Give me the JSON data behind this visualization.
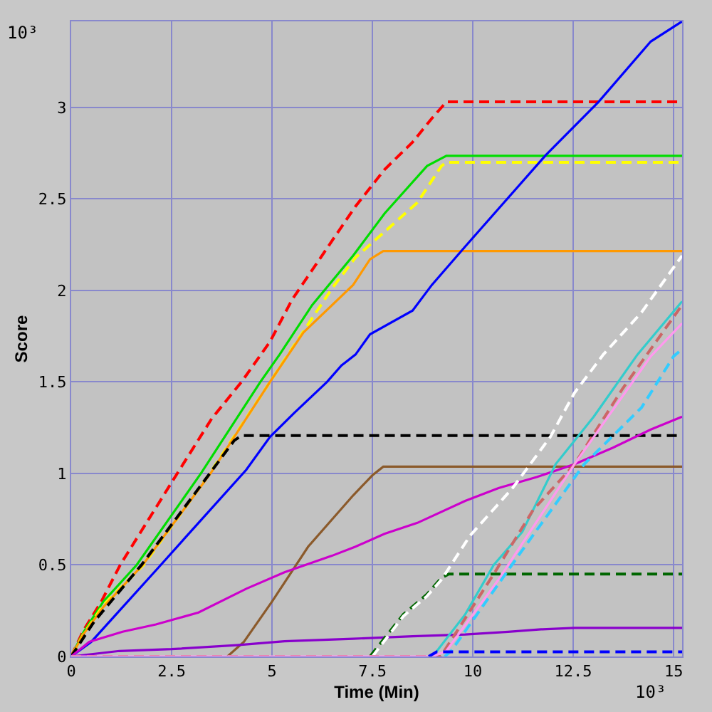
{
  "chart_data": {
    "type": "line",
    "xlabel": "Time (Min)",
    "ylabel": "Score",
    "annotations": [
      "10³",
      "10³"
    ],
    "xlim": [
      0,
      15.21
    ],
    "ylim": [
      0,
      3.47
    ],
    "xticks": [
      0,
      2.5,
      5,
      7.5,
      10,
      12.5,
      15
    ],
    "yticks": [
      0,
      0.5,
      1,
      1.5,
      2,
      2.5,
      3
    ],
    "grid": true,
    "series": [
      {
        "color": "#ff0000",
        "line_style": "dashed",
        "x": [
          0,
          0.3,
          0.75,
          1.22,
          2.64,
          3.5,
          4.24,
          4.95,
          5.5,
          7.08,
          7.8,
          8.5,
          8.98,
          9.34,
          15.21
        ],
        "values": [
          0,
          0.14,
          0.3,
          0.5,
          1.0,
          1.3,
          1.5,
          1.72,
          1.95,
          2.46,
          2.66,
          2.81,
          2.94,
          3.03,
          3.03
        ]
      },
      {
        "color": "#00dd00",
        "line_style": "solid",
        "x": [
          0,
          0.3,
          0.8,
          1.63,
          3.23,
          4.71,
          5.19,
          6.0,
          7.02,
          7.8,
          8.86,
          9.34,
          15.21
        ],
        "values": [
          0,
          0.13,
          0.3,
          0.5,
          1.0,
          1.5,
          1.65,
          1.92,
          2.19,
          2.42,
          2.68,
          2.735,
          2.735
        ]
      },
      {
        "color": "#ffff00",
        "line_style": "dashed",
        "x": [
          0,
          0.3,
          0.8,
          1.8,
          3.45,
          4.95,
          5.55,
          6.49,
          7.08,
          7.8,
          8.62,
          9.22,
          9.34,
          15.21
        ],
        "values": [
          0,
          0.12,
          0.28,
          0.5,
          1.0,
          1.5,
          1.7,
          2.01,
          2.18,
          2.32,
          2.48,
          2.68,
          2.7,
          2.7
        ]
      },
      {
        "color": "#ff9900",
        "line_style": "solid",
        "x": [
          0,
          0.3,
          0.8,
          1.78,
          3.47,
          4.95,
          5.78,
          7.02,
          7.44,
          7.77,
          15.21
        ],
        "values": [
          0,
          0.12,
          0.27,
          0.5,
          1.0,
          1.5,
          1.77,
          2.03,
          2.17,
          2.215,
          2.215
        ]
      },
      {
        "color": "#0000ff",
        "line_style": "solid",
        "x": [
          0,
          0.5,
          2.23,
          3.17,
          4.36,
          4.95,
          5.55,
          6.37,
          6.73,
          7.08,
          7.44,
          8.5,
          8.98,
          9.81,
          11.82,
          13.13,
          14.43,
          15.21
        ],
        "values": [
          0,
          0.08,
          0.5,
          0.73,
          1.02,
          1.2,
          1.33,
          1.5,
          1.59,
          1.65,
          1.76,
          1.89,
          2.03,
          2.24,
          2.74,
          3.03,
          3.36,
          3.47
        ]
      },
      {
        "color": "#000000",
        "line_style": "dashed",
        "x": [
          0,
          0.57,
          1.75,
          3.45,
          4.06,
          4.24,
          15.21
        ],
        "values": [
          0,
          0.19,
          0.5,
          1.0,
          1.18,
          1.207,
          1.207
        ]
      },
      {
        "color": "#8b5a2b",
        "line_style": "solid",
        "x": [
          3.89,
          4.3,
          5.0,
          5.9,
          7.02,
          7.5,
          7.77,
          15.21
        ],
        "values": [
          0,
          0.08,
          0.3,
          0.6,
          0.88,
          0.99,
          1.037,
          1.037
        ]
      },
      {
        "color": "#cc00cc",
        "line_style": "solid",
        "x": [
          0,
          0.45,
          1.28,
          2.11,
          3.17,
          4.36,
          5.31,
          6.49,
          7.08,
          7.8,
          8.62,
          9.81,
          10.64,
          11.59,
          12.53,
          13.48,
          14.43,
          15.21
        ],
        "values": [
          0,
          0.08,
          0.135,
          0.175,
          0.24,
          0.37,
          0.46,
          0.55,
          0.6,
          0.67,
          0.73,
          0.85,
          0.92,
          0.98,
          1.05,
          1.14,
          1.24,
          1.31
        ]
      },
      {
        "color": "#8800cc",
        "line_style": "solid",
        "x": [
          0,
          1.2,
          2.5,
          4.12,
          5.31,
          7.02,
          8.5,
          9.81,
          10.88,
          11.7,
          12.53,
          15.21
        ],
        "values": [
          0,
          0.03,
          0.04,
          0.062,
          0.083,
          0.097,
          0.11,
          0.12,
          0.135,
          0.148,
          0.156,
          0.156
        ]
      },
      {
        "color": "#006600",
        "line_style": "dashed",
        "x": [
          7.44,
          8.27,
          8.86,
          9.22,
          9.4,
          15.21
        ],
        "values": [
          0,
          0.23,
          0.34,
          0.43,
          0.45,
          0.45
        ]
      },
      {
        "color": "#ffffff",
        "line_style": "dashed",
        "x": [
          7.5,
          8.27,
          8.86,
          9.22,
          9.93,
          10.99,
          11.93,
          12.53,
          13.25,
          14.2,
          15.21
        ],
        "values": [
          0,
          0.22,
          0.33,
          0.42,
          0.66,
          0.92,
          1.2,
          1.44,
          1.65,
          1.88,
          2.19
        ]
      },
      {
        "color": "#33cccc",
        "line_style": "solid",
        "x": [
          9.0,
          9.81,
          10.52,
          11.23,
          12.06,
          13.01,
          14.1,
          15.21
        ],
        "values": [
          0,
          0.23,
          0.5,
          0.68,
          1.05,
          1.31,
          1.65,
          1.94
        ]
      },
      {
        "color": "#cc6666",
        "line_style": "dashed",
        "x": [
          0,
          9.2,
          10.52,
          11.5,
          12.53,
          13.72,
          15.21
        ],
        "values": [
          0,
          0,
          0.45,
          0.8,
          1.05,
          1.46,
          1.92
        ]
      },
      {
        "color": "#ff99ee",
        "line_style": "solid",
        "x": [
          0,
          9.0,
          9.34,
          10.64,
          12.53,
          14.43,
          15.21
        ],
        "values": [
          0,
          0,
          0.03,
          0.42,
          1.05,
          1.64,
          1.82
        ]
      },
      {
        "color": "#33ccff",
        "line_style": "dashed",
        "x": [
          9.3,
          9.46,
          11.23,
          12.77,
          14.2,
          15.0,
          15.21
        ],
        "values": [
          0,
          0.03,
          0.58,
          1.05,
          1.36,
          1.64,
          1.68
        ]
      },
      {
        "color": "#0000ff",
        "line_style": "dashed",
        "x": [
          8.9,
          9.1,
          15.21
        ],
        "values": [
          0,
          0.025,
          0.025
        ]
      }
    ]
  }
}
